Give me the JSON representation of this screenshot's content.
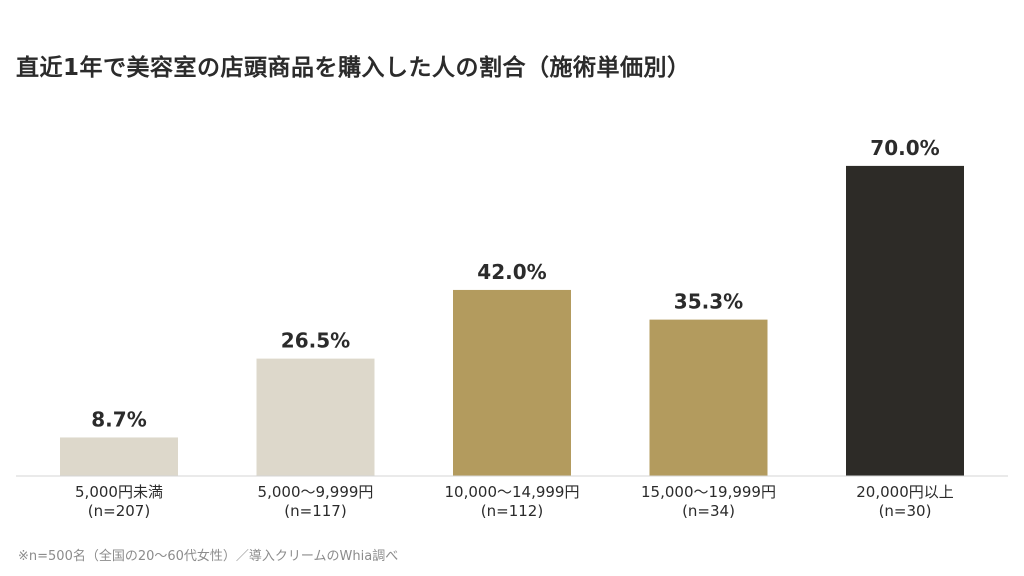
{
  "title": "直近1年で美容室の店頭商品を購入した人の割合（施術単価別）",
  "footnote": "※n=500名（全国の20〜60代女性）／導入クリームのWhia調べ",
  "colors": {
    "light": "#ddd8cb",
    "gold": "#b39b5e",
    "dark": "#2d2b27",
    "baseline": "#d4d4d4",
    "label": "#2b2b2b"
  },
  "chart_data": {
    "type": "bar",
    "title": "直近1年で美容室の店頭商品を購入した人の割合（施術単価別）",
    "categories": [
      "5,000円未満",
      "5,000〜9,999円",
      "10,000〜14,999円",
      "15,000〜19,999円",
      "20,000円以上"
    ],
    "sample_sizes": [
      "(n=207)",
      "(n=117)",
      "(n=112)",
      "(n=34)",
      "(n=30)"
    ],
    "values": [
      8.7,
      26.5,
      42.0,
      35.3,
      70.0
    ],
    "value_labels": [
      "8.7%",
      "26.5%",
      "42.0%",
      "35.3%",
      "70.0%"
    ],
    "bar_colors": [
      "#ddd8cb",
      "#ddd8cb",
      "#b39b5e",
      "#b39b5e",
      "#2d2b27"
    ],
    "unit": "%",
    "ylim": [
      0,
      100
    ],
    "grid": false,
    "legend": "none"
  }
}
